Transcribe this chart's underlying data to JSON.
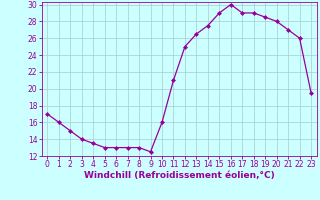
{
  "hours": [
    0,
    1,
    2,
    3,
    4,
    5,
    6,
    7,
    8,
    9,
    10,
    11,
    12,
    13,
    14,
    15,
    16,
    17,
    18,
    19,
    20,
    21,
    22,
    23
  ],
  "values": [
    17.0,
    16.0,
    15.0,
    14.0,
    13.5,
    13.0,
    13.0,
    13.0,
    13.0,
    12.5,
    16.0,
    21.0,
    25.0,
    26.5,
    27.5,
    29.0,
    30.0,
    29.0,
    29.0,
    28.5,
    28.0,
    27.0,
    26.0,
    19.5
  ],
  "line_color": "#990099",
  "marker": "D",
  "markersize": 2.0,
  "linewidth": 0.9,
  "xlabel": "Windchill (Refroidissement éolien,°C)",
  "xlim_min": -0.5,
  "xlim_max": 23.5,
  "ylim_min": 12,
  "ylim_max": 30,
  "yticks": [
    12,
    14,
    16,
    18,
    20,
    22,
    24,
    26,
    28,
    30
  ],
  "xticks": [
    0,
    1,
    2,
    3,
    4,
    5,
    6,
    7,
    8,
    9,
    10,
    11,
    12,
    13,
    14,
    15,
    16,
    17,
    18,
    19,
    20,
    21,
    22,
    23
  ],
  "bg_color": "#ccffff",
  "grid_color": "#aacccc",
  "tick_color": "#990099",
  "label_color": "#990099",
  "xlabel_fontsize": 6.5,
  "tick_fontsize": 5.5
}
